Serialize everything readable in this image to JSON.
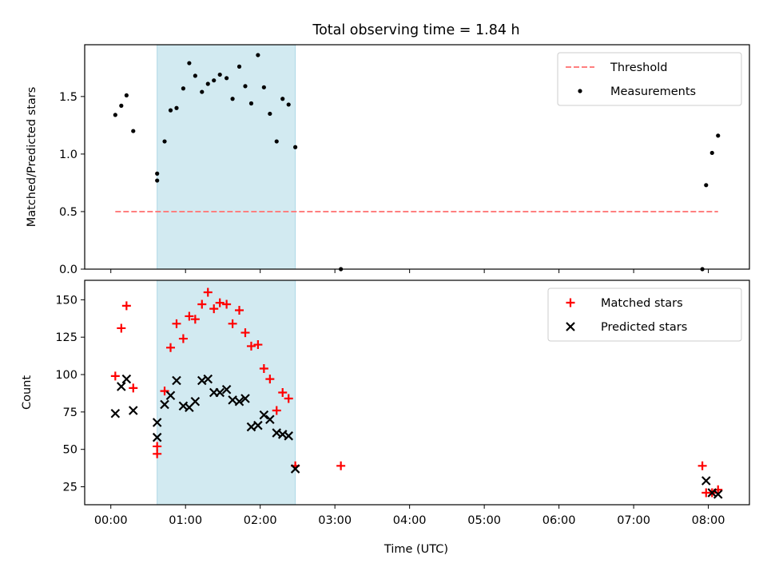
{
  "figure": {
    "title": "Total observing time = 1.84 h",
    "xlabel": "Time (UTC)"
  },
  "chart_data": [
    {
      "type": "scatter",
      "panel": "top",
      "ylabel": "Matched/Predicted stars",
      "xlim": [
        -0.35,
        8.55
      ],
      "ylim": [
        0,
        1.95
      ],
      "yticks": [
        0.0,
        0.5,
        1.0,
        1.5
      ],
      "ytick_labels": [
        "0.0",
        "0.5",
        "1.0",
        "1.5"
      ],
      "shaded_region": {
        "x": [
          0.62,
          2.47
        ],
        "color": "#add8e6"
      },
      "legend_position": "upper-right",
      "series": [
        {
          "name": "Threshold",
          "kind": "line",
          "style": "dashed",
          "color": "#ff7f7f",
          "x": [
            0.06,
            8.13
          ],
          "y": [
            0.5,
            0.5
          ]
        },
        {
          "name": "Measurements",
          "kind": "points",
          "color": "#000000",
          "x": [
            0.06,
            0.14,
            0.21,
            0.3,
            0.62,
            0.62,
            0.72,
            0.8,
            0.88,
            0.97,
            1.05,
            1.13,
            1.22,
            1.3,
            1.38,
            1.46,
            1.55,
            1.63,
            1.72,
            1.8,
            1.88,
            1.97,
            2.05,
            2.13,
            2.22,
            2.3,
            2.38,
            2.47,
            3.08,
            7.92,
            7.97,
            8.05,
            8.13
          ],
          "y": [
            1.34,
            1.42,
            1.51,
            1.2,
            0.83,
            0.77,
            1.11,
            1.38,
            1.4,
            1.57,
            1.79,
            1.68,
            1.54,
            1.61,
            1.64,
            1.69,
            1.66,
            1.48,
            1.76,
            1.59,
            1.44,
            1.86,
            1.58,
            1.35,
            1.11,
            1.48,
            1.43,
            1.06,
            0.0,
            0.0,
            0.73,
            1.01,
            1.16
          ]
        }
      ]
    },
    {
      "type": "scatter",
      "panel": "bottom",
      "ylabel": "Count",
      "xlim": [
        -0.35,
        8.55
      ],
      "ylim": [
        13,
        163
      ],
      "yticks": [
        25,
        50,
        75,
        100,
        125,
        150
      ],
      "ytick_labels": [
        "25",
        "50",
        "75",
        "100",
        "125",
        "150"
      ],
      "xticks": [
        0,
        1,
        2,
        3,
        4,
        5,
        6,
        7,
        8
      ],
      "xtick_labels": [
        "00:00",
        "01:00",
        "02:00",
        "03:00",
        "04:00",
        "05:00",
        "06:00",
        "07:00",
        "08:00"
      ],
      "shaded_region": {
        "x": [
          0.62,
          2.47
        ],
        "color": "#add8e6"
      },
      "legend_position": "upper-right",
      "series": [
        {
          "name": "Matched stars",
          "marker": "plus",
          "color": "#ff0000",
          "x": [
            0.06,
            0.14,
            0.21,
            0.3,
            0.62,
            0.62,
            0.72,
            0.8,
            0.88,
            0.97,
            1.05,
            1.13,
            1.22,
            1.3,
            1.38,
            1.46,
            1.55,
            1.63,
            1.72,
            1.8,
            1.88,
            1.97,
            2.05,
            2.13,
            2.22,
            2.3,
            2.38,
            2.47,
            3.08,
            7.92,
            7.97,
            8.05,
            8.13
          ],
          "y": [
            99,
            131,
            146,
            91,
            52,
            47,
            89,
            118,
            134,
            124,
            139,
            137,
            147,
            155,
            144,
            148,
            147,
            134,
            143,
            128,
            119,
            120,
            104,
            97,
            76,
            88,
            84,
            39,
            39,
            39,
            21,
            21,
            23
          ]
        },
        {
          "name": "Predicted stars",
          "marker": "x",
          "color": "#000000",
          "x": [
            0.06,
            0.14,
            0.21,
            0.3,
            0.62,
            0.62,
            0.72,
            0.8,
            0.88,
            0.97,
            1.05,
            1.13,
            1.22,
            1.3,
            1.38,
            1.46,
            1.55,
            1.63,
            1.72,
            1.8,
            1.88,
            1.97,
            2.05,
            2.13,
            2.22,
            2.3,
            2.38,
            2.47,
            7.97,
            8.05,
            8.13
          ],
          "y": [
            74,
            92,
            97,
            76,
            68,
            58,
            80,
            86,
            96,
            79,
            78,
            82,
            96,
            97,
            88,
            88,
            90,
            83,
            82,
            84,
            65,
            66,
            73,
            70,
            61,
            60,
            59,
            37,
            29,
            21,
            20
          ]
        }
      ]
    }
  ]
}
